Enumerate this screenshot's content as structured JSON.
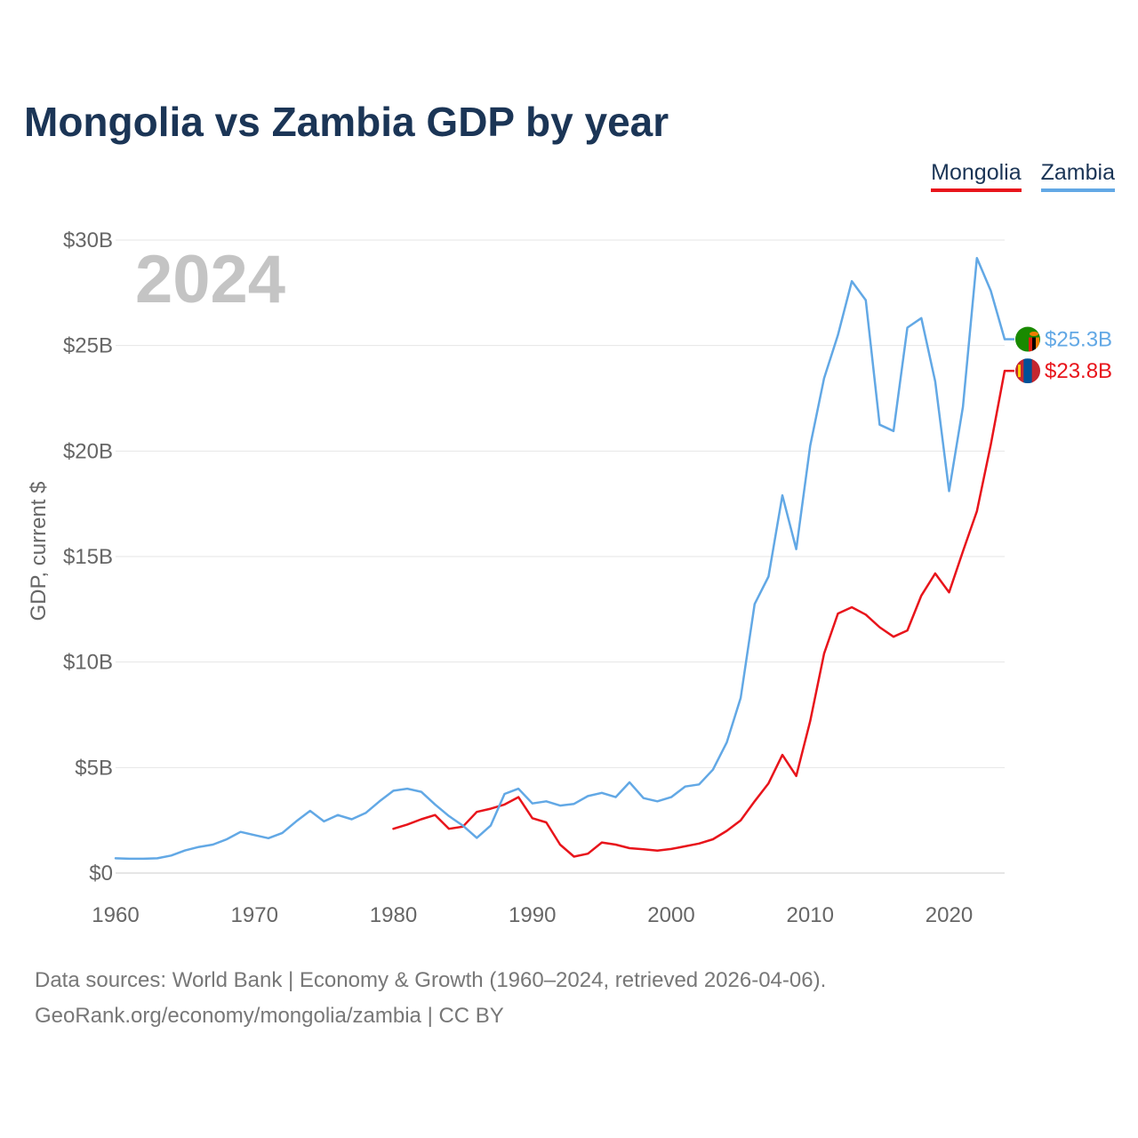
{
  "title": "Mongolia vs Zambia GDP by year",
  "footer": {
    "line1": "Data sources: World Bank | Economy & Growth (1960–2024, retrieved 2026-04-06).",
    "line2": "GeoRank.org/economy/mongolia/zambia | CC BY"
  },
  "chart_data": {
    "type": "line",
    "title": "Mongolia vs Zambia GDP by year",
    "xlabel": "",
    "ylabel": "GDP, current $",
    "year_watermark": "2024",
    "xlim": [
      1960,
      2024
    ],
    "ylim": [
      0,
      30
    ],
    "unit": "billion USD",
    "x_ticks": [
      1960,
      1970,
      1980,
      1990,
      2000,
      2010,
      2020
    ],
    "y_ticks": [
      0,
      5,
      10,
      15,
      20,
      25,
      30
    ],
    "y_tick_labels": [
      "$0",
      "$5B",
      "$10B",
      "$15B",
      "$20B",
      "$25B",
      "$30B"
    ],
    "grid": true,
    "legend_position": "top-right",
    "series": [
      {
        "name": "Mongolia",
        "color": "#e8141b",
        "flag": "mongolia-flag",
        "end_label": "$23.8B",
        "x": [
          1980,
          1981,
          1982,
          1983,
          1984,
          1985,
          1986,
          1987,
          1988,
          1989,
          1990,
          1991,
          1992,
          1993,
          1994,
          1995,
          1996,
          1997,
          1998,
          1999,
          2000,
          2001,
          2002,
          2003,
          2004,
          2005,
          2006,
          2007,
          2008,
          2009,
          2010,
          2011,
          2012,
          2013,
          2014,
          2015,
          2016,
          2017,
          2018,
          2019,
          2020,
          2021,
          2022,
          2023,
          2024
        ],
        "values": [
          2.1,
          2.3,
          2.55,
          2.75,
          2.1,
          2.2,
          2.9,
          3.05,
          3.25,
          3.6,
          2.6,
          2.4,
          1.35,
          0.78,
          0.92,
          1.45,
          1.35,
          1.18,
          1.13,
          1.06,
          1.14,
          1.27,
          1.4,
          1.6,
          2.0,
          2.5,
          3.4,
          4.25,
          5.6,
          4.6,
          7.2,
          10.4,
          12.3,
          12.6,
          12.25,
          11.65,
          11.2,
          11.5,
          13.15,
          14.2,
          13.3,
          15.25,
          17.15,
          20.3,
          23.8
        ]
      },
      {
        "name": "Zambia",
        "color": "#62a8e5",
        "flag": "zambia-flag",
        "end_label": "$25.3B",
        "x": [
          1960,
          1961,
          1962,
          1963,
          1964,
          1965,
          1966,
          1967,
          1968,
          1969,
          1970,
          1971,
          1972,
          1973,
          1974,
          1975,
          1976,
          1977,
          1978,
          1979,
          1980,
          1981,
          1982,
          1983,
          1984,
          1985,
          1986,
          1987,
          1988,
          1989,
          1990,
          1991,
          1992,
          1993,
          1994,
          1995,
          1996,
          1997,
          1998,
          1999,
          2000,
          2001,
          2002,
          2003,
          2004,
          2005,
          2006,
          2007,
          2008,
          2009,
          2010,
          2011,
          2012,
          2013,
          2014,
          2015,
          2016,
          2017,
          2018,
          2019,
          2020,
          2021,
          2022,
          2023,
          2024
        ],
        "values": [
          0.7,
          0.68,
          0.68,
          0.7,
          0.83,
          1.07,
          1.24,
          1.35,
          1.6,
          1.95,
          1.8,
          1.65,
          1.9,
          2.45,
          2.95,
          2.45,
          2.75,
          2.55,
          2.85,
          3.4,
          3.9,
          4.0,
          3.85,
          3.25,
          2.7,
          2.25,
          1.67,
          2.25,
          3.75,
          4.0,
          3.3,
          3.4,
          3.2,
          3.28,
          3.65,
          3.8,
          3.6,
          4.3,
          3.55,
          3.4,
          3.6,
          4.1,
          4.2,
          4.9,
          6.2,
          8.3,
          12.75,
          14.05,
          17.9,
          15.35,
          20.25,
          23.45,
          25.5,
          28.05,
          27.15,
          21.25,
          20.95,
          25.85,
          26.3,
          23.3,
          18.1,
          22.1,
          29.15,
          27.6,
          25.3
        ]
      }
    ]
  }
}
